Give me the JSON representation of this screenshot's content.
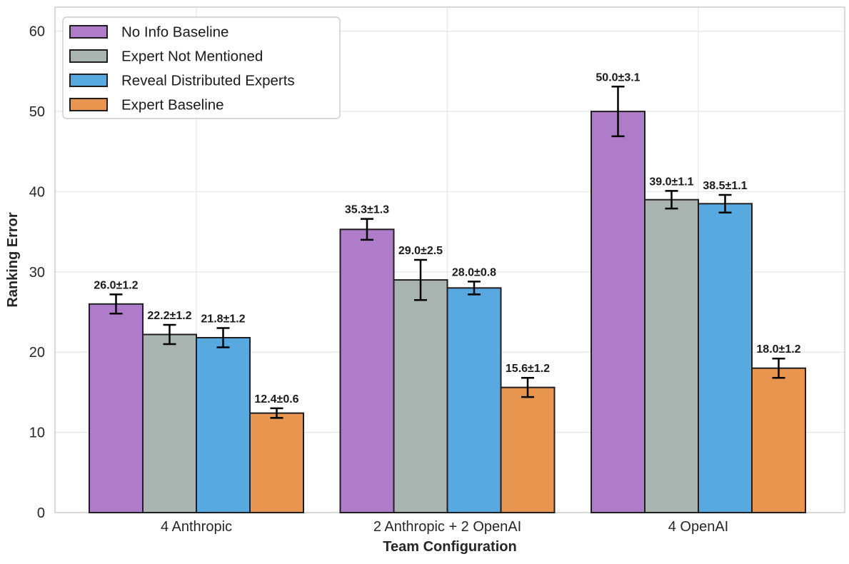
{
  "chart_data": {
    "type": "bar",
    "title": "",
    "xlabel": "Team Configuration",
    "ylabel": "Ranking Error",
    "categories": [
      "4 Anthropic",
      "2 Anthropic + 2 OpenAI",
      "4 OpenAI"
    ],
    "series": [
      {
        "name": "No Info Baseline",
        "color": "#ae7cc8",
        "values": [
          26.0,
          35.3,
          50.0
        ],
        "errors": [
          1.2,
          1.3,
          3.1
        ],
        "labels": [
          "26.0±1.2",
          "35.3±1.3",
          "50.0±3.1"
        ]
      },
      {
        "name": "Expert Not Mentioned",
        "color": "#a9b4b1",
        "values": [
          22.2,
          29.0,
          39.0
        ],
        "errors": [
          1.2,
          2.5,
          1.1
        ],
        "labels": [
          "22.2±1.2",
          "29.0±2.5",
          "39.0±1.1"
        ]
      },
      {
        "name": "Reveal Distributed Experts",
        "color": "#58a9e0",
        "values": [
          21.8,
          28.0,
          38.5
        ],
        "errors": [
          1.2,
          0.8,
          1.1
        ],
        "labels": [
          "21.8±1.2",
          "28.0±0.8",
          "38.5±1.1"
        ]
      },
      {
        "name": "Expert Baseline",
        "color": "#e8954f",
        "values": [
          12.4,
          15.6,
          18.0
        ],
        "errors": [
          0.6,
          1.2,
          1.2
        ],
        "labels": [
          "12.4±0.6",
          "15.6±1.2",
          "18.0±1.2"
        ]
      }
    ],
    "ylim": [
      0,
      63
    ],
    "yticks": [
      0,
      10,
      20,
      30,
      40,
      50,
      60
    ],
    "grid": true,
    "error_bars": true,
    "legend_position": "upper left"
  },
  "colors": {
    "background": "#ffffff",
    "bar_edge": "#1f1f1f",
    "error_bar": "#000000",
    "grid": "#e7e7e7",
    "spine": "#c9c9c9",
    "tick_text": "#262626",
    "value_text": "#1a1a1a",
    "legend_border": "#cccccc",
    "legend_fill": "#ffffff"
  }
}
